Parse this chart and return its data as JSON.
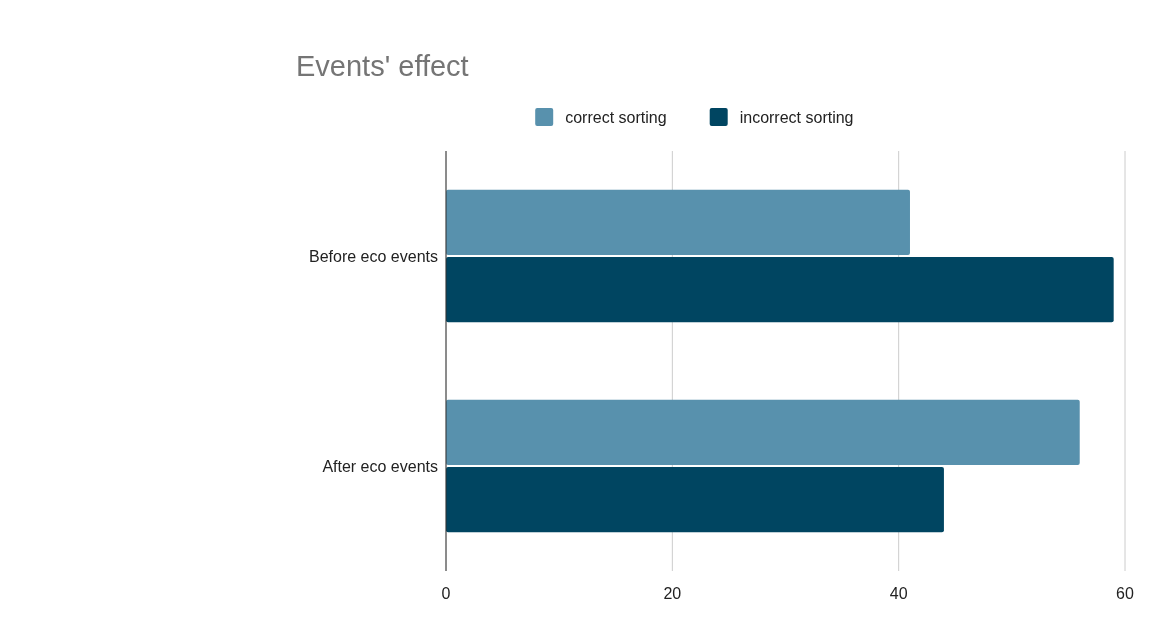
{
  "chart_data": {
    "type": "bar",
    "title": "Events' effect",
    "orientation": "horizontal",
    "categories": [
      "Before eco events",
      "After eco events"
    ],
    "series": [
      {
        "name": "correct sorting",
        "color": "#5891ad",
        "values": [
          41,
          56
        ]
      },
      {
        "name": "incorrect sorting",
        "color": "#004561",
        "values": [
          59,
          44
        ]
      }
    ],
    "xlim": [
      0,
      60
    ],
    "xticks": [
      0,
      20,
      40,
      60
    ],
    "grid": "x",
    "legend": "top"
  }
}
